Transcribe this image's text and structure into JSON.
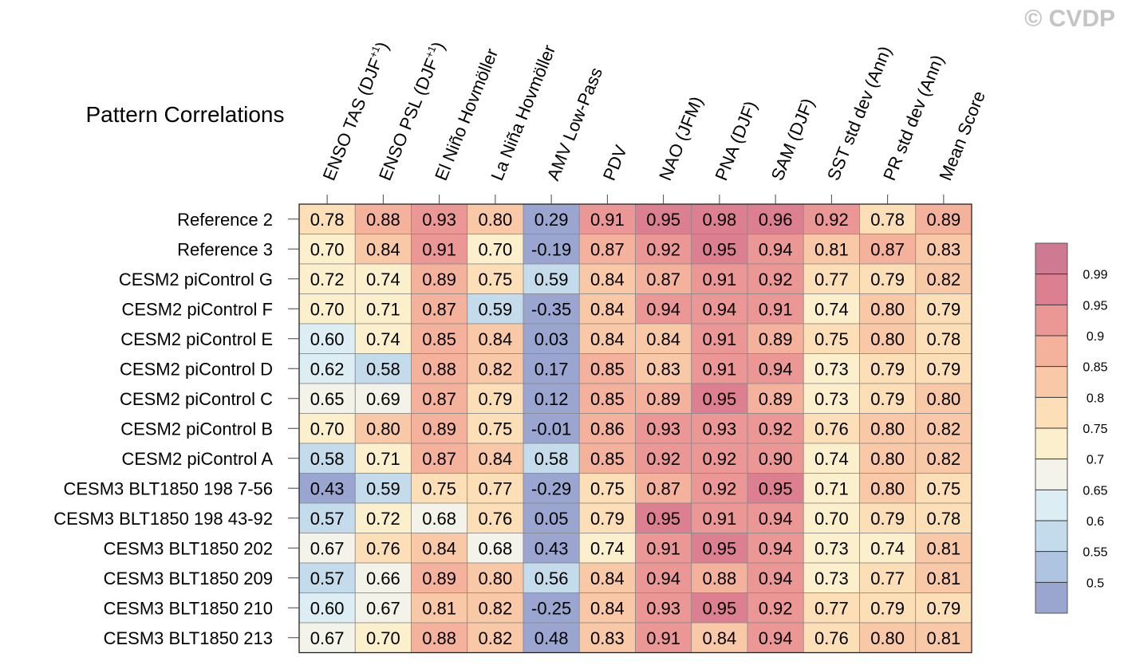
{
  "watermark": "© CVDP",
  "chart_data": {
    "type": "heatmap",
    "title": "Pattern Correlations",
    "columns": [
      "ENSO TAS (DJF+1)",
      "ENSO PSL (DJF+1)",
      "El Niño Hovmöller",
      "La Niña Hovmöller",
      "AMV Low-Pass",
      "PDV",
      "NAO (JFM)",
      "PNA (DJF)",
      "SAM (DJF)",
      "SST std dev (Ann)",
      "PR std dev (Ann)",
      "Mean Score"
    ],
    "rows": [
      "Reference 2",
      "Reference 3",
      "CESM2 piControl G",
      "CESM2 piControl F",
      "CESM2 piControl E",
      "CESM2 piControl D",
      "CESM2 piControl C",
      "CESM2 piControl B",
      "CESM2 piControl A",
      "CESM3 BLT1850 198 7-56",
      "CESM3 BLT1850 198 43-92",
      "CESM3 BLT1850 202",
      "CESM3 BLT1850 209",
      "CESM3 BLT1850 210",
      "CESM3 BLT1850 213"
    ],
    "values": [
      [
        "0.78",
        "0.88",
        "0.93",
        "0.80",
        "0.29",
        "0.91",
        "0.95",
        "0.98",
        "0.96",
        "0.92",
        "0.78",
        "0.89"
      ],
      [
        "0.70",
        "0.84",
        "0.91",
        "0.70",
        "-0.19",
        "0.87",
        "0.92",
        "0.95",
        "0.94",
        "0.81",
        "0.87",
        "0.83"
      ],
      [
        "0.72",
        "0.74",
        "0.89",
        "0.75",
        "0.59",
        "0.84",
        "0.87",
        "0.91",
        "0.92",
        "0.77",
        "0.79",
        "0.82"
      ],
      [
        "0.70",
        "0.71",
        "0.87",
        "0.59",
        "-0.35",
        "0.84",
        "0.94",
        "0.94",
        "0.91",
        "0.74",
        "0.80",
        "0.79"
      ],
      [
        "0.60",
        "0.74",
        "0.85",
        "0.84",
        "0.03",
        "0.84",
        "0.84",
        "0.91",
        "0.89",
        "0.75",
        "0.80",
        "0.78"
      ],
      [
        "0.62",
        "0.58",
        "0.88",
        "0.82",
        "0.17",
        "0.85",
        "0.83",
        "0.91",
        "0.94",
        "0.73",
        "0.79",
        "0.79"
      ],
      [
        "0.65",
        "0.69",
        "0.87",
        "0.79",
        "0.12",
        "0.85",
        "0.89",
        "0.95",
        "0.89",
        "0.73",
        "0.79",
        "0.80"
      ],
      [
        "0.70",
        "0.80",
        "0.89",
        "0.75",
        "-0.01",
        "0.86",
        "0.93",
        "0.93",
        "0.92",
        "0.76",
        "0.80",
        "0.82"
      ],
      [
        "0.58",
        "0.71",
        "0.87",
        "0.84",
        "0.58",
        "0.85",
        "0.92",
        "0.92",
        "0.90",
        "0.74",
        "0.80",
        "0.82"
      ],
      [
        "0.43",
        "0.59",
        "0.75",
        "0.77",
        "-0.29",
        "0.75",
        "0.87",
        "0.92",
        "0.95",
        "0.71",
        "0.80",
        "0.75"
      ],
      [
        "0.57",
        "0.72",
        "0.68",
        "0.76",
        "0.05",
        "0.79",
        "0.95",
        "0.91",
        "0.94",
        "0.70",
        "0.79",
        "0.78"
      ],
      [
        "0.67",
        "0.76",
        "0.84",
        "0.68",
        "0.43",
        "0.74",
        "0.91",
        "0.95",
        "0.94",
        "0.73",
        "0.74",
        "0.81"
      ],
      [
        "0.57",
        "0.66",
        "0.89",
        "0.80",
        "0.56",
        "0.84",
        "0.94",
        "0.88",
        "0.94",
        "0.73",
        "0.77",
        "0.81"
      ],
      [
        "0.60",
        "0.67",
        "0.81",
        "0.82",
        "-0.25",
        "0.84",
        "0.93",
        "0.95",
        "0.92",
        "0.77",
        "0.79",
        "0.79"
      ],
      [
        "0.67",
        "0.70",
        "0.88",
        "0.82",
        "0.48",
        "0.83",
        "0.91",
        "0.84",
        "0.94",
        "0.76",
        "0.80",
        "0.81"
      ]
    ],
    "colorbar": {
      "levels": [
        "0.99",
        "0.95",
        "0.9",
        "0.85",
        "0.8",
        "0.75",
        "0.7",
        "0.65",
        "0.6",
        "0.55",
        "0.5"
      ],
      "thresholds": [
        0.5,
        0.55,
        0.6,
        0.65,
        0.7,
        0.75,
        0.8,
        0.85,
        0.9,
        0.95,
        0.99
      ],
      "colors": [
        "#9aa6d0",
        "#aec4e0",
        "#c3dbea",
        "#dcedf3",
        "#f3f3e9",
        "#fcefcc",
        "#fcdfb7",
        "#f9c8a6",
        "#f4b19c",
        "#eb9795",
        "#dc7f90",
        "#cd7a92"
      ]
    }
  }
}
